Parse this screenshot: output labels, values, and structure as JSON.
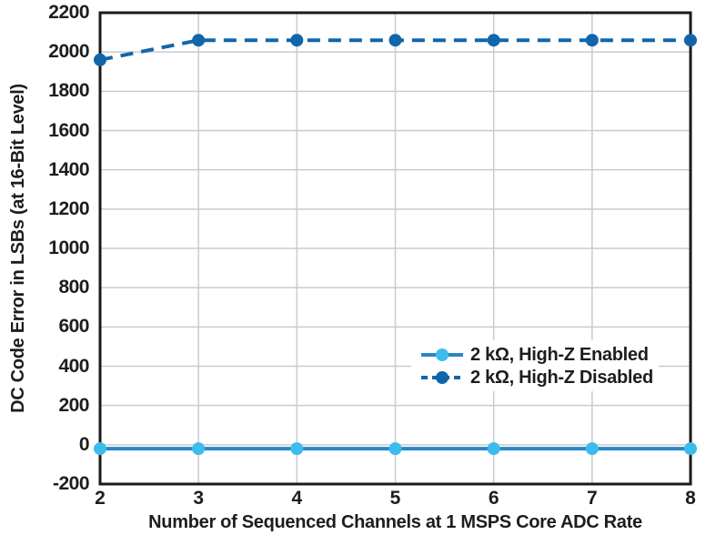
{
  "chart_data": {
    "type": "line",
    "x": [
      2,
      3,
      4,
      5,
      6,
      7,
      8
    ],
    "series": [
      {
        "name": "2 kΩ, High-Z Enabled",
        "values": [
          -20,
          -20,
          -20,
          -20,
          -20,
          -20,
          -20
        ],
        "line_style": "solid",
        "line_color": "#2a86c7",
        "marker_color": "#3cbcec"
      },
      {
        "name": "2 kΩ, High-Z Disabled",
        "values": [
          1960,
          2060,
          2060,
          2060,
          2060,
          2060,
          2060
        ],
        "line_style": "dashed",
        "line_color": "#1166ab",
        "marker_color": "#1166ab"
      }
    ],
    "title": "",
    "xlabel": "Number of Sequenced Channels at 1 MSPS Core ADC Rate",
    "ylabel": "DC Code Error in LSBs (at 16-Bit Level)",
    "xlim": [
      2,
      8
    ],
    "ylim": [
      -200,
      2200
    ],
    "x_ticks": [
      2,
      3,
      4,
      5,
      6,
      7,
      8
    ],
    "y_ticks": [
      2200,
      2000,
      1800,
      1600,
      1400,
      1200,
      1000,
      800,
      600,
      400,
      200,
      0,
      -200
    ],
    "grid": true,
    "legend_position": "inside-right-lower"
  },
  "colors": {
    "background": "#ffffff",
    "frame": "#1a1a1a",
    "grid": "#cbcbcb",
    "text": "#1d1d1b"
  }
}
